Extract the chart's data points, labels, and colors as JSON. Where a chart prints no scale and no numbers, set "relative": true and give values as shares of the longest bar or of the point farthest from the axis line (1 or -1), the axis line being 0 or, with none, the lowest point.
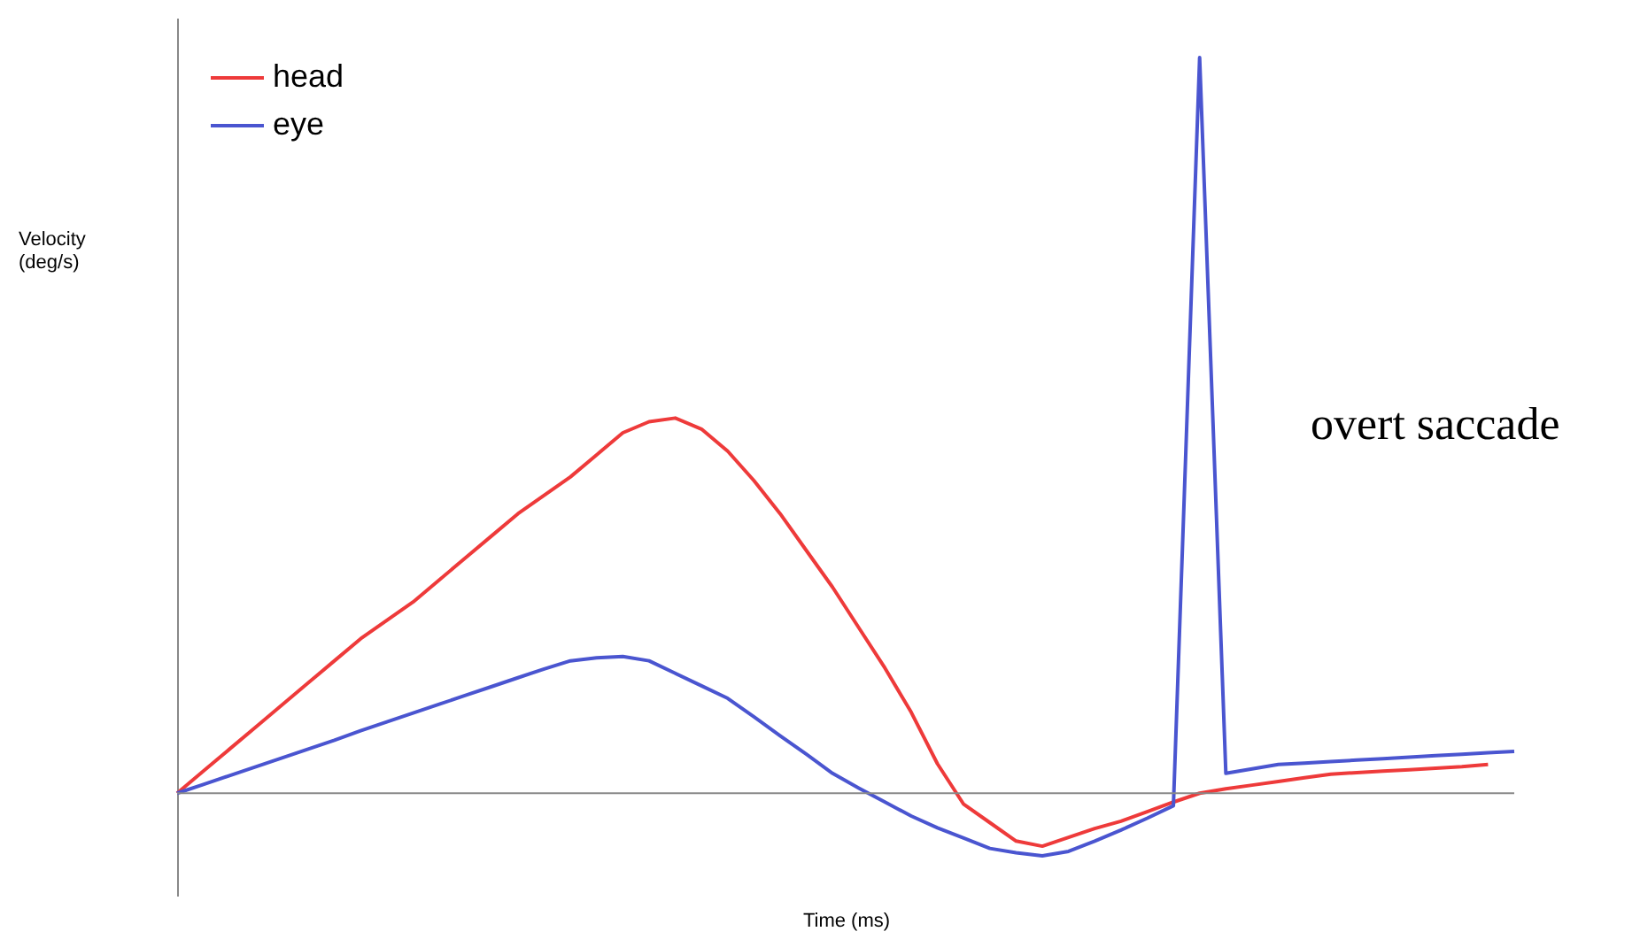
{
  "chart_data": {
    "type": "line",
    "relative": true,
    "xlabel": "Time (ms)",
    "ylabel": "Velocity (deg/s)",
    "legend": "top left",
    "grid": false,
    "tick_labels": false,
    "marker": "none",
    "line_style": "solid",
    "annotations": [
      "overt saccade"
    ],
    "categories": [
      null,
      null,
      null,
      null,
      null,
      null,
      null,
      null,
      null,
      null,
      null,
      null,
      null,
      null,
      null,
      null,
      null,
      null,
      null,
      null,
      null,
      null,
      null,
      null,
      null,
      null,
      null,
      null,
      null,
      null,
      null,
      null,
      null,
      null,
      null,
      null,
      null,
      null,
      null,
      null,
      null,
      null,
      null,
      null,
      null,
      null,
      null,
      null,
      null,
      null,
      null,
      null
    ],
    "series": [
      {
        "name": "head",
        "color": "#ee3a3a",
        "values": [
          0,
          0.03,
          0.06,
          0.09,
          0.12,
          0.15,
          0.18,
          0.21,
          0.235,
          0.26,
          0.29,
          0.32,
          0.35,
          0.38,
          0.405,
          0.43,
          0.46,
          0.49,
          0.505,
          0.51,
          0.495,
          0.465,
          0.425,
          0.38,
          0.33,
          0.28,
          0.225,
          0.17,
          0.11,
          0.04,
          -0.015,
          -0.04,
          -0.065,
          -0.072,
          -0.06,
          -0.048,
          -0.038,
          -0.025,
          -0.012,
          0,
          0.006,
          0.011,
          0.016,
          0.021,
          0.026,
          0.028,
          0.03,
          0.032,
          0.034,
          0.036,
          0.039,
          null
        ]
      },
      {
        "name": "eye",
        "color": "#4a55d0",
        "values": [
          0,
          0.012,
          0.024,
          0.036,
          0.048,
          0.06,
          0.072,
          0.085,
          0.097,
          0.109,
          0.121,
          0.133,
          0.145,
          0.157,
          0.169,
          0.18,
          0.184,
          0.186,
          0.18,
          0.163,
          0.146,
          0.129,
          0.104,
          0.078,
          0.053,
          0.027,
          0.007,
          -0.012,
          -0.031,
          -0.047,
          -0.061,
          -0.075,
          -0.081,
          -0.085,
          -0.079,
          -0.065,
          -0.05,
          -0.034,
          -0.017,
          1.0,
          0.027,
          0.033,
          0.039,
          0.041,
          0.043,
          0.045,
          0.047,
          0.049,
          0.051,
          0.053,
          0.055,
          0.057
        ]
      }
    ]
  }
}
